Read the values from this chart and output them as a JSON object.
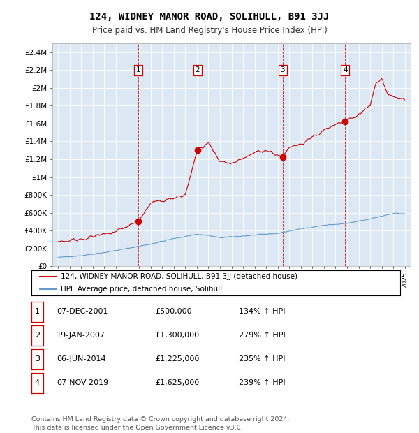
{
  "title": "124, WIDNEY MANOR ROAD, SOLIHULL, B91 3JJ",
  "subtitle": "Price paid vs. HM Land Registry's House Price Index (HPI)",
  "background_color": "#ffffff",
  "plot_bg_color": "#dce9f5",
  "ylim": [
    0,
    2500000
  ],
  "yticks": [
    0,
    200000,
    400000,
    600000,
    800000,
    1000000,
    1200000,
    1400000,
    1600000,
    1800000,
    2000000,
    2200000,
    2400000
  ],
  "ytick_labels": [
    "£0",
    "£200K",
    "£400K",
    "£600K",
    "£800K",
    "£1M",
    "£1.2M",
    "£1.4M",
    "£1.6M",
    "£1.8M",
    "£2M",
    "£2.2M",
    "£2.4M"
  ],
  "xlim_start": 1994.5,
  "xlim_end": 2025.5,
  "sale_dates": [
    2001.92,
    2007.05,
    2014.43,
    2019.84
  ],
  "sale_prices": [
    500000,
    1300000,
    1225000,
    1625000
  ],
  "sale_labels": [
    "1",
    "2",
    "3",
    "4"
  ],
  "hpi_line_color": "#6699cc",
  "price_line_color": "#cc0000",
  "vline_color": "#cc0000",
  "legend_entries": [
    "124, WIDNEY MANOR ROAD, SOLIHULL, B91 3JJ (detached house)",
    "HPI: Average price, detached house, Solihull"
  ],
  "table_rows": [
    [
      "1",
      "07-DEC-2001",
      "£500,000",
      "134% ↑ HPI"
    ],
    [
      "2",
      "19-JAN-2007",
      "£1,300,000",
      "279% ↑ HPI"
    ],
    [
      "3",
      "06-JUN-2014",
      "£1,225,000",
      "235% ↑ HPI"
    ],
    [
      "4",
      "07-NOV-2019",
      "£1,625,000",
      "239% ↑ HPI"
    ]
  ],
  "footer": "Contains HM Land Registry data © Crown copyright and database right 2024.\nThis data is licensed under the Open Government Licence v3.0."
}
